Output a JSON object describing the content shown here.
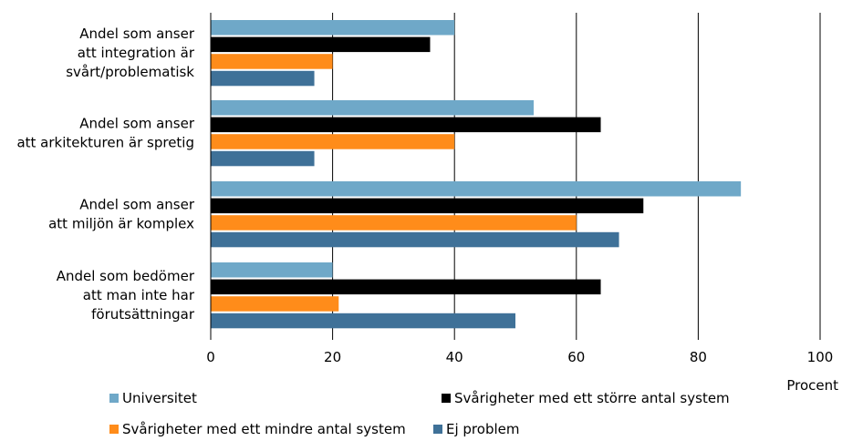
{
  "chart_data": {
    "type": "bar",
    "orientation": "horizontal",
    "categories": [
      [
        "Andel som anser",
        "att integration är",
        "svårt/problematisk"
      ],
      [
        "Andel som anser",
        "att arkitekturen är spretig"
      ],
      [
        "Andel som anser",
        "att miljön är komplex"
      ],
      [
        "Andel som bedömer",
        "att man inte har",
        "förutsättningar"
      ]
    ],
    "series": [
      {
        "name": "Universitet",
        "color": "#6fa8c8",
        "values": [
          40,
          53,
          87,
          20
        ]
      },
      {
        "name": "Svårigheter med ett större antal system",
        "color": "#000000",
        "values": [
          36,
          64,
          71,
          64
        ]
      },
      {
        "name": "Svårigheter med ett mindre antal system",
        "color": "#ff8c1a",
        "values": [
          20,
          40,
          60,
          21
        ]
      },
      {
        "name": "Ej problem",
        "color": "#3f7198",
        "values": [
          17,
          17,
          67,
          50
        ]
      }
    ],
    "xlim": [
      0,
      100
    ],
    "xticks": [
      "0",
      "20",
      "40",
      "60",
      "80",
      "100"
    ],
    "xlabel": "Procent",
    "grid": "vertical",
    "legend_position": "bottom"
  }
}
